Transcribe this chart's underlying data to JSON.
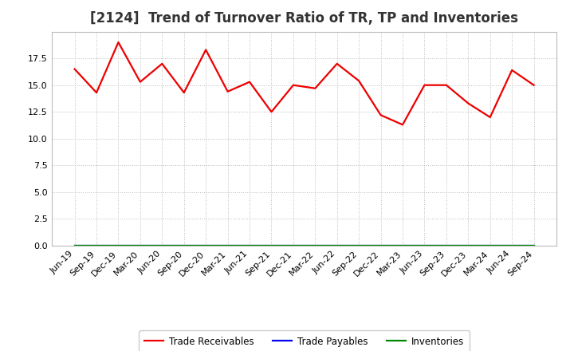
{
  "title": "[2124]  Trend of Turnover Ratio of TR, TP and Inventories",
  "x_labels": [
    "Jun-19",
    "Sep-19",
    "Dec-19",
    "Mar-20",
    "Jun-20",
    "Sep-20",
    "Dec-20",
    "Mar-21",
    "Jun-21",
    "Sep-21",
    "Dec-21",
    "Mar-22",
    "Jun-22",
    "Sep-22",
    "Dec-22",
    "Mar-23",
    "Jun-23",
    "Sep-23",
    "Dec-23",
    "Mar-24",
    "Jun-24",
    "Sep-24"
  ],
  "trade_receivables": [
    16.5,
    14.3,
    19.0,
    15.3,
    17.0,
    14.3,
    18.3,
    14.4,
    15.3,
    12.5,
    15.0,
    14.7,
    17.0,
    15.4,
    12.2,
    11.3,
    15.0,
    15.0,
    13.3,
    12.0,
    16.4,
    15.0
  ],
  "trade_payables": [
    0.0,
    0.0,
    0.0,
    0.0,
    0.0,
    0.0,
    0.0,
    0.0,
    0.0,
    0.0,
    0.0,
    0.0,
    0.0,
    0.0,
    0.0,
    0.0,
    0.0,
    0.0,
    0.0,
    0.0,
    0.0,
    0.0
  ],
  "inventories": [
    0.0,
    0.0,
    0.0,
    0.0,
    0.0,
    0.0,
    0.0,
    0.0,
    0.0,
    0.0,
    0.0,
    0.0,
    0.0,
    0.0,
    0.0,
    0.0,
    0.0,
    0.0,
    0.0,
    0.0,
    0.0,
    0.0
  ],
  "tr_color": "#EE0000",
  "tp_color": "#0000EE",
  "inv_color": "#008800",
  "background_color": "#FFFFFF",
  "plot_bg_color": "#FFFFFF",
  "grid_color": "#BBBBBB",
  "ylim": [
    0,
    20
  ],
  "yticks": [
    0.0,
    2.5,
    5.0,
    7.5,
    10.0,
    12.5,
    15.0,
    17.5
  ],
  "legend_labels": [
    "Trade Receivables",
    "Trade Payables",
    "Inventories"
  ],
  "title_fontsize": 12,
  "tick_fontsize": 8
}
